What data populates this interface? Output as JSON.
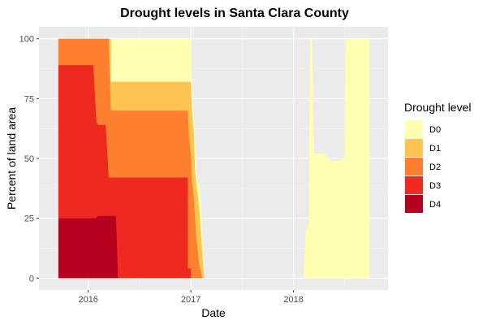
{
  "chart_data": {
    "type": "area",
    "title": "Drought levels in Santa Clara County",
    "xlabel": "Date",
    "ylabel": "Percent of land area",
    "xlim": [
      2015.52,
      2018.92
    ],
    "ylim": [
      -5,
      105
    ],
    "x_ticks": [
      2016,
      2017,
      2018
    ],
    "x_tick_labels": [
      "2016",
      "2017",
      "2018"
    ],
    "y_ticks": [
      0,
      25,
      50,
      75,
      100
    ],
    "y_tick_labels": [
      "0",
      "25",
      "50",
      "75",
      "100"
    ],
    "grid": true,
    "legend_title": "Drought level",
    "legend_position": "right",
    "series": [
      {
        "name": "D0",
        "color": "#FFFFB2",
        "x": [
          2015.71,
          2017.0,
          2017.01,
          2017.06,
          2017.09,
          2017.13,
          2017.13,
          2018.1,
          2018.12,
          2018.15,
          2018.16,
          2018.18,
          2018.2,
          2018.32,
          2018.36,
          2018.44,
          2018.5,
          2018.51,
          2018.74,
          2018.74
        ],
        "values": [
          100,
          100,
          82,
          41,
          38,
          6,
          0,
          0,
          20,
          22,
          100,
          100,
          52,
          52,
          49,
          49,
          50,
          100,
          100,
          0
        ]
      },
      {
        "name": "D1",
        "color": "#FEC44F",
        "x": [
          2015.71,
          2016.22,
          2016.22,
          2017.0,
          2017.01,
          2017.03,
          2017.04,
          2017.06,
          2017.08,
          2017.11,
          2017.13,
          2017.13
        ],
        "values": [
          100,
          100,
          82,
          82,
          71,
          60,
          45,
          37,
          30,
          12,
          0,
          0
        ]
      },
      {
        "name": "D2",
        "color": "#FE7F30",
        "x": [
          2015.71,
          2016.2,
          2016.22,
          2016.22,
          2016.97,
          2016.98,
          2017.0,
          2017.01,
          2017.03,
          2017.05,
          2017.08,
          2017.11,
          2017.11
        ],
        "values": [
          100,
          100,
          70,
          70,
          70,
          60,
          51,
          41,
          33,
          18,
          6,
          0,
          0
        ]
      },
      {
        "name": "D3",
        "color": "#EE2A20",
        "x": [
          2015.71,
          2016.05,
          2016.08,
          2016.1,
          2016.17,
          2016.2,
          2016.22,
          2016.97,
          2016.97,
          2017.0,
          2017.0,
          2017.0
        ],
        "values": [
          89,
          89,
          65,
          64,
          64,
          42,
          42,
          42,
          4,
          4,
          0,
          0
        ]
      },
      {
        "name": "D4",
        "color": "#B50020",
        "x": [
          2015.71,
          2016.08,
          2016.09,
          2016.27,
          2016.29,
          2016.29
        ],
        "values": [
          25,
          25,
          26,
          26,
          0,
          0
        ]
      }
    ]
  }
}
